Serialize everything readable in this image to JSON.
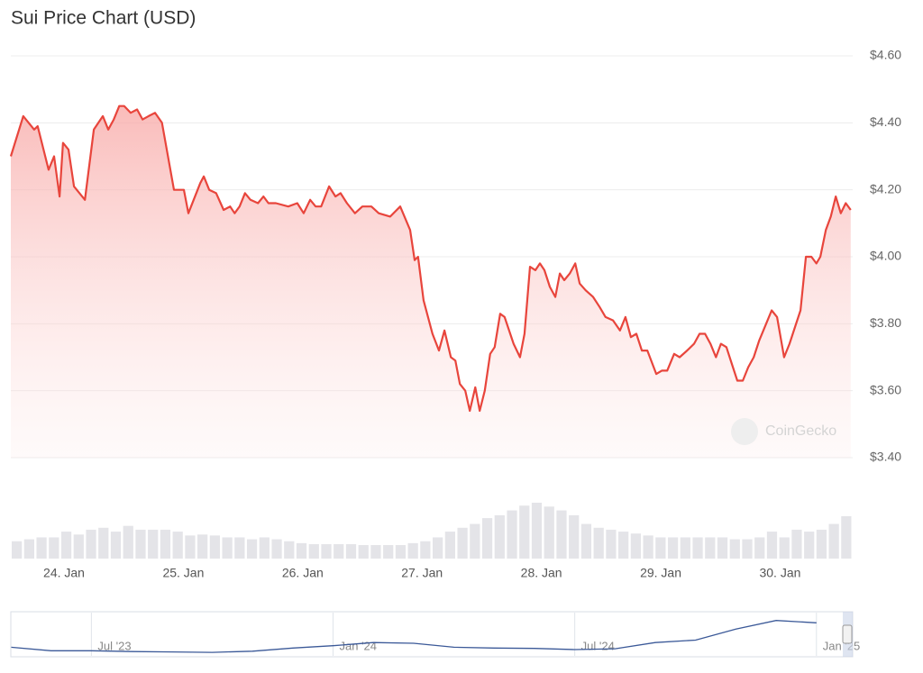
{
  "chart_data": {
    "type": "line",
    "title": "Sui Price Chart (USD)",
    "watermark": "CoinGecko",
    "color": "#e8453c",
    "grid": true,
    "ylim": [
      3.4,
      4.6
    ],
    "yticks": [
      {
        "value": 3.4,
        "label": "$3.40"
      },
      {
        "value": 3.6,
        "label": "$3.60"
      },
      {
        "value": 3.8,
        "label": "$3.80"
      },
      {
        "value": 4.0,
        "label": "$4.00"
      },
      {
        "value": 4.2,
        "label": "$4.20"
      },
      {
        "value": 4.4,
        "label": "$4.40"
      },
      {
        "value": 4.6,
        "label": "$4.60"
      }
    ],
    "xlim": [
      -10.7,
      158.6
    ],
    "xticks": [
      {
        "value": 0,
        "label": "24. Jan"
      },
      {
        "value": 24,
        "label": "25. Jan"
      },
      {
        "value": 48,
        "label": "26. Jan"
      },
      {
        "value": 72,
        "label": "27. Jan"
      },
      {
        "value": 96,
        "label": "28. Jan"
      },
      {
        "value": 120,
        "label": "29. Jan"
      },
      {
        "value": 144,
        "label": "30. Jan"
      }
    ],
    "x": [
      -10.7,
      -8.2,
      -6.0,
      -5.3,
      -3.1,
      -2.0,
      -0.9,
      -0.2,
      0.9,
      2.0,
      4.2,
      6.0,
      7.8,
      8.9,
      10.0,
      11.1,
      12.1,
      13.4,
      14.7,
      15.8,
      17.0,
      18.3,
      19.7,
      22.1,
      24.1,
      25.0,
      27.4,
      28.1,
      29.2,
      30.6,
      32.1,
      33.4,
      34.3,
      35.3,
      36.4,
      37.5,
      39.0,
      40.1,
      41.1,
      42.6,
      45.1,
      46.9,
      48.2,
      49.5,
      50.6,
      51.7,
      53.3,
      54.6,
      55.6,
      56.9,
      58.5,
      60.0,
      61.8,
      63.3,
      65.6,
      67.6,
      69.6,
      70.5,
      71.2,
      72.3,
      74.1,
      75.4,
      76.5,
      77.8,
      78.7,
      79.6,
      80.7,
      81.6,
      82.7,
      83.6,
      84.6,
      85.7,
      86.6,
      87.7,
      88.6,
      90.4,
      91.7,
      92.6,
      93.7,
      94.8,
      95.7,
      96.6,
      97.7,
      98.8,
      99.7,
      100.6,
      101.7,
      102.8,
      103.7,
      104.9,
      106.4,
      107.7,
      108.9,
      110.4,
      111.8,
      112.9,
      114.0,
      115.1,
      116.2,
      117.3,
      119.1,
      120.2,
      121.3,
      122.7,
      123.8,
      125.3,
      126.7,
      127.8,
      128.9,
      130.0,
      131.1,
      132.1,
      133.2,
      134.3,
      135.4,
      136.5,
      137.6,
      138.7,
      139.8,
      141.2,
      142.3,
      143.4,
      144.8,
      145.9,
      147.0,
      148.1,
      149.2,
      150.3,
      151.3,
      152.1,
      153.2,
      154.2,
      155.2,
      156.2,
      157.2,
      158.2
    ],
    "values": [
      4.3,
      4.42,
      4.38,
      4.39,
      4.26,
      4.3,
      4.18,
      4.34,
      4.32,
      4.21,
      4.17,
      4.38,
      4.42,
      4.38,
      4.41,
      4.45,
      4.45,
      4.43,
      4.44,
      4.41,
      4.42,
      4.43,
      4.4,
      4.2,
      4.2,
      4.13,
      4.22,
      4.24,
      4.2,
      4.19,
      4.14,
      4.15,
      4.13,
      4.15,
      4.19,
      4.17,
      4.16,
      4.18,
      4.16,
      4.16,
      4.15,
      4.16,
      4.13,
      4.17,
      4.15,
      4.15,
      4.21,
      4.18,
      4.19,
      4.16,
      4.13,
      4.15,
      4.15,
      4.13,
      4.12,
      4.15,
      4.08,
      3.99,
      4.0,
      3.87,
      3.77,
      3.72,
      3.78,
      3.7,
      3.69,
      3.62,
      3.6,
      3.54,
      3.61,
      3.54,
      3.6,
      3.71,
      3.73,
      3.83,
      3.82,
      3.74,
      3.7,
      3.77,
      3.97,
      3.96,
      3.98,
      3.96,
      3.91,
      3.88,
      3.95,
      3.93,
      3.95,
      3.98,
      3.92,
      3.9,
      3.88,
      3.85,
      3.82,
      3.81,
      3.78,
      3.82,
      3.76,
      3.77,
      3.72,
      3.72,
      3.65,
      3.66,
      3.66,
      3.71,
      3.7,
      3.72,
      3.74,
      3.77,
      3.77,
      3.74,
      3.7,
      3.74,
      3.73,
      3.68,
      3.63,
      3.63,
      3.67,
      3.7,
      3.75,
      3.8,
      3.84,
      3.82,
      3.7,
      3.74,
      3.79,
      3.84,
      4.0,
      4.0,
      3.98,
      4.0,
      4.08,
      4.12,
      4.18,
      4.13,
      4.16,
      4.14
    ],
    "volume": {
      "color": "#e4e4e8",
      "values": [
        18,
        20,
        22,
        22,
        28,
        25,
        30,
        32,
        28,
        34,
        30,
        30,
        30,
        28,
        24,
        25,
        24,
        22,
        22,
        20,
        22,
        20,
        18,
        16,
        15,
        15,
        15,
        15,
        14,
        14,
        14,
        14,
        16,
        18,
        22,
        28,
        32,
        36,
        42,
        45,
        50,
        55,
        58,
        54,
        50,
        45,
        36,
        32,
        30,
        28,
        26,
        24,
        22,
        22,
        22,
        22,
        22,
        22,
        20,
        20,
        22,
        28,
        22,
        30,
        28,
        30,
        36,
        44
      ]
    },
    "navigator": {
      "color": "#3b5998",
      "xlim": [
        0,
        20.9
      ],
      "ylim": [
        0,
        5.5
      ],
      "xticks": [
        {
          "value": 2,
          "label": "Jul '23"
        },
        {
          "value": 8,
          "label": "Jan '24"
        },
        {
          "value": 14,
          "label": "Jul '24"
        },
        {
          "value": 20,
          "label": "Jan '25"
        }
      ],
      "x": [
        0,
        1,
        2,
        3,
        4,
        5,
        6,
        7,
        8,
        9,
        10,
        11,
        12,
        13,
        14,
        15,
        16,
        17,
        18,
        19,
        20
      ],
      "values": [
        1.1,
        0.65,
        0.65,
        0.55,
        0.5,
        0.45,
        0.6,
        1.0,
        1.3,
        1.7,
        1.6,
        1.1,
        1.0,
        0.95,
        0.8,
        0.9,
        1.7,
        2.0,
        3.4,
        4.5,
        4.2
      ]
    }
  }
}
